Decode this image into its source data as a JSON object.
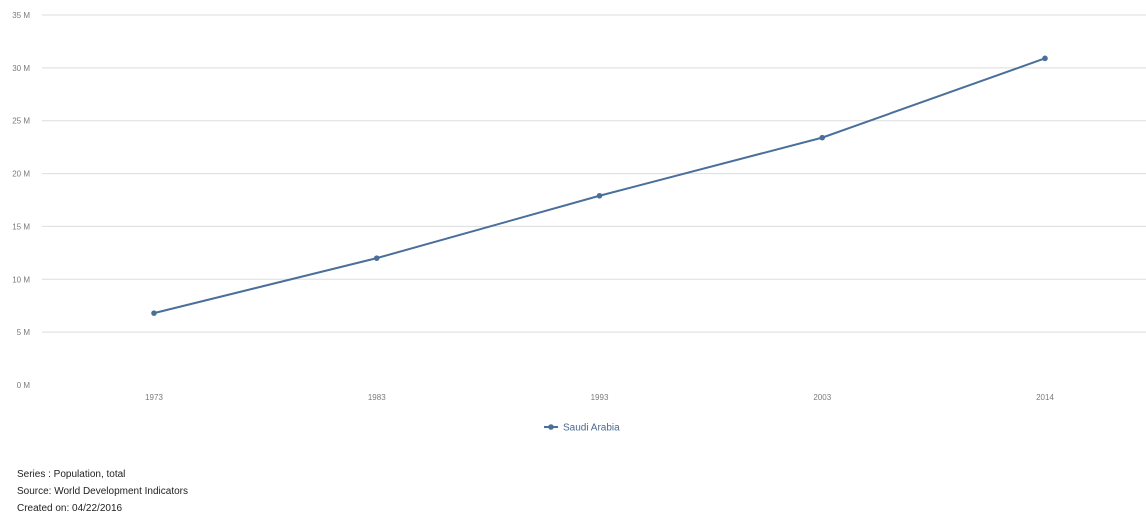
{
  "chart_data": {
    "type": "line",
    "categories": [
      "1973",
      "1983",
      "1993",
      "2003",
      "2014"
    ],
    "series": [
      {
        "name": "Saudi Arabia",
        "values": [
          6800000,
          12000000,
          17900000,
          23400000,
          30900000
        ]
      }
    ],
    "y_ticks": [
      "0 M",
      "5 M",
      "10 M",
      "15 M",
      "20 M",
      "25 M",
      "30 M",
      "35 M"
    ],
    "ylim": [
      0,
      35000000
    ],
    "grid": true,
    "legend_position": "bottom-center",
    "colors": {
      "series": "#4a6f9a",
      "grid": "#dddddd",
      "tick_text": "#7a7a7a"
    }
  },
  "footer": {
    "series_line": "Series : Population, total",
    "source_line": "Source: World Development Indicators",
    "created_line": "Created on: 04/22/2016"
  }
}
